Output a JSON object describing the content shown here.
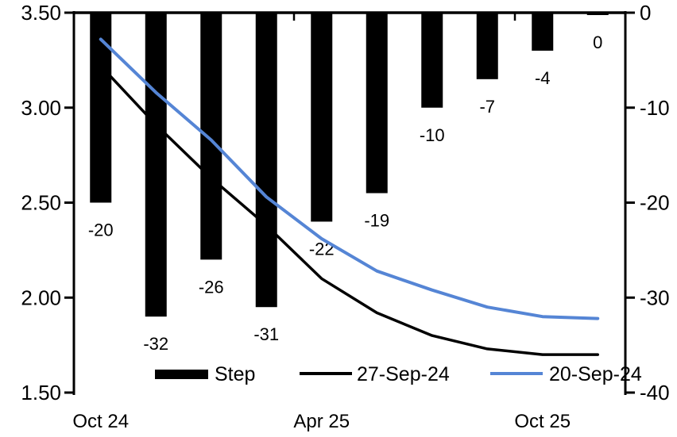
{
  "page": {
    "background": "#ffffff"
  },
  "chart_data": {
    "type": "bar+line",
    "title": "",
    "n_categories": 10,
    "x_axis": {
      "tick_labels": [
        {
          "index": 0,
          "label": "Oct 24"
        },
        {
          "index": 4,
          "label": "Apr 25"
        },
        {
          "index": 8,
          "label": "Oct 25"
        }
      ],
      "boundary_tick_indices": [
        4,
        8
      ]
    },
    "left_axis": {
      "min": 1.5,
      "max": 3.5,
      "tick_labels": [
        "3.50",
        "3.00",
        "2.50",
        "2.00",
        "1.50"
      ]
    },
    "right_axis": {
      "min": -40,
      "max": 0,
      "tick_labels": [
        "0",
        "-10",
        "-20",
        "-30",
        "-40"
      ]
    },
    "bar_series": {
      "name": "Step",
      "axis": "right",
      "color": "#000000",
      "values": [
        -20,
        -32,
        -26,
        -31,
        -22,
        -19,
        -10,
        -7,
        -4,
        0
      ],
      "data_labels": [
        "-20",
        "-32",
        "-26",
        "-31",
        "-22",
        "-19",
        "-10",
        "-7",
        "-4",
        "0"
      ]
    },
    "line_series": [
      {
        "name": "27-Sep-24",
        "axis": "left",
        "color": "#000000",
        "stroke_width": 3.5,
        "values": [
          3.22,
          2.91,
          2.63,
          2.38,
          2.1,
          1.92,
          1.8,
          1.73,
          1.7,
          1.7
        ]
      },
      {
        "name": "20-Sep-24",
        "axis": "left",
        "color": "#5585D5",
        "stroke_width": 4,
        "values": [
          3.36,
          3.08,
          2.83,
          2.53,
          2.31,
          2.14,
          2.04,
          1.95,
          1.9,
          1.89
        ]
      }
    ],
    "legend": {
      "position": "bottom-inside",
      "items": [
        {
          "label": "Step",
          "marker": "bar",
          "color": "#000000"
        },
        {
          "label": "27-Sep-24",
          "marker": "line",
          "color": "#000000"
        },
        {
          "label": "20-Sep-24",
          "marker": "line",
          "color": "#5585D5"
        }
      ]
    },
    "layout_hints": {
      "grid": "off",
      "bars_hang_from_zero_at_top": true,
      "axis_color": "#000000"
    }
  }
}
